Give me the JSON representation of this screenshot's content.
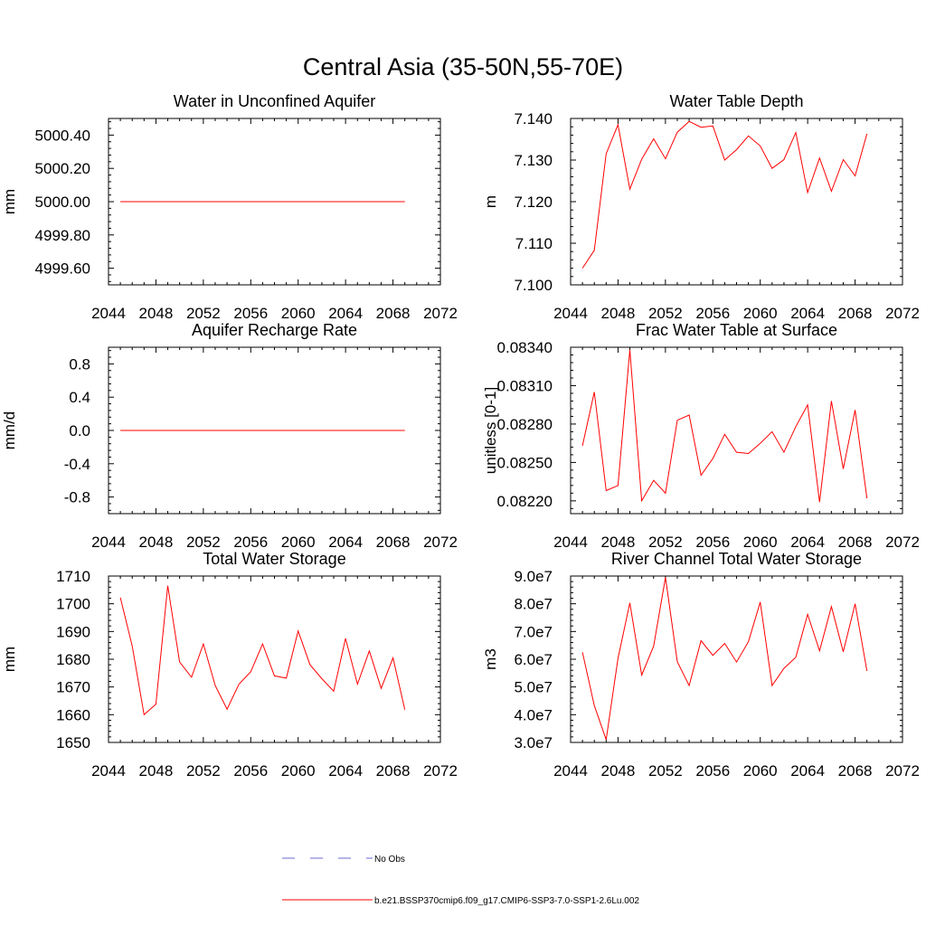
{
  "title": "Central Asia (35-50N,55-70E)",
  "colors": {
    "model": "#ff0000",
    "obs": "#6a6ad8",
    "axis": "#000000"
  },
  "legend": {
    "obs_label": "No Obs",
    "model_label": "b.e21.BSSP370cmip6.f09_g17.CMIP6-SSP3-7.0-SSP1-2.6Lu.002"
  },
  "chart_data": [
    {
      "type": "line",
      "title": "Water in Unconfined Aquifer",
      "ylabel": "mm",
      "xlim": [
        2044,
        2072
      ],
      "ylim": [
        4999.5,
        5000.5
      ],
      "xticks": [
        2044,
        2048,
        2052,
        2056,
        2060,
        2064,
        2068,
        2072
      ],
      "yticks": [
        4999.6,
        4999.8,
        5000.0,
        5000.2,
        5000.4
      ],
      "ytick_labels": [
        "4999.60",
        "4999.80",
        "5000.00",
        "5000.20",
        "5000.40"
      ],
      "x": [
        2045,
        2046,
        2047,
        2048,
        2049,
        2050,
        2051,
        2052,
        2053,
        2054,
        2055,
        2056,
        2057,
        2058,
        2059,
        2060,
        2061,
        2062,
        2063,
        2064,
        2065,
        2066,
        2067,
        2068,
        2069
      ],
      "values": [
        5000.0,
        5000.0,
        5000.0,
        5000.0,
        5000.0,
        5000.0,
        5000.0,
        5000.0,
        5000.0,
        5000.0,
        5000.0,
        5000.0,
        5000.0,
        5000.0,
        5000.0,
        5000.0,
        5000.0,
        5000.0,
        5000.0,
        5000.0,
        5000.0,
        5000.0,
        5000.0,
        5000.0,
        5000.0
      ]
    },
    {
      "type": "line",
      "title": "Water Table Depth",
      "ylabel": "m",
      "xlim": [
        2044,
        2072
      ],
      "ylim": [
        7.1,
        7.14
      ],
      "xticks": [
        2044,
        2048,
        2052,
        2056,
        2060,
        2064,
        2068,
        2072
      ],
      "yticks": [
        7.1,
        7.11,
        7.12,
        7.13,
        7.14
      ],
      "ytick_labels": [
        "7.100",
        "7.110",
        "7.120",
        "7.130",
        "7.140"
      ],
      "x": [
        2045,
        2046,
        2047,
        2048,
        2049,
        2050,
        2051,
        2052,
        2053,
        2054,
        2055,
        2056,
        2057,
        2058,
        2059,
        2060,
        2061,
        2062,
        2063,
        2064,
        2065,
        2066,
        2067,
        2068,
        2069
      ],
      "values": [
        7.104,
        7.1083,
        7.1315,
        7.1385,
        7.123,
        7.1302,
        7.1351,
        7.1303,
        7.1367,
        7.1393,
        7.1379,
        7.1382,
        7.13,
        7.1325,
        7.1358,
        7.1334,
        7.128,
        7.1301,
        7.1366,
        7.1222,
        7.1305,
        7.1225,
        7.1301,
        7.1262,
        7.1363
      ]
    },
    {
      "type": "line",
      "title": "Aquifer Recharge Rate",
      "ylabel": "mm/d",
      "xlim": [
        2044,
        2072
      ],
      "ylim": [
        -1.0,
        1.0
      ],
      "xticks": [
        2044,
        2048,
        2052,
        2056,
        2060,
        2064,
        2068,
        2072
      ],
      "yticks": [
        -0.8,
        -0.4,
        0.0,
        0.4,
        0.8
      ],
      "ytick_labels": [
        "-0.8",
        "-0.4",
        "0.0",
        "0.4",
        "0.8"
      ],
      "x": [
        2045,
        2046,
        2047,
        2048,
        2049,
        2050,
        2051,
        2052,
        2053,
        2054,
        2055,
        2056,
        2057,
        2058,
        2059,
        2060,
        2061,
        2062,
        2063,
        2064,
        2065,
        2066,
        2067,
        2068,
        2069
      ],
      "values": [
        0.0,
        0.0,
        0.0,
        0.0,
        0.0,
        0.0,
        0.0,
        0.0,
        0.0,
        0.0,
        0.0,
        0.0,
        0.0,
        0.0,
        0.0,
        0.0,
        0.0,
        0.0,
        0.0,
        0.0,
        0.0,
        0.0,
        0.0,
        0.0,
        0.0
      ]
    },
    {
      "type": "line",
      "title": "Frac Water Table at Surface",
      "ylabel": "unitless [0-1]",
      "xlim": [
        2044,
        2072
      ],
      "ylim": [
        0.0821,
        0.0834
      ],
      "xticks": [
        2044,
        2048,
        2052,
        2056,
        2060,
        2064,
        2068,
        2072
      ],
      "yticks": [
        0.0822,
        0.0825,
        0.0828,
        0.0831,
        0.0834
      ],
      "ytick_labels": [
        "0.08220",
        "0.08250",
        "0.08280",
        "0.08310",
        "0.08340"
      ],
      "x": [
        2045,
        2046,
        2047,
        2048,
        2049,
        2050,
        2051,
        2052,
        2053,
        2054,
        2055,
        2056,
        2057,
        2058,
        2059,
        2060,
        2061,
        2062,
        2063,
        2064,
        2065,
        2066,
        2067,
        2068,
        2069
      ],
      "values": [
        0.08263,
        0.08305,
        0.08228,
        0.08232,
        0.08338,
        0.0822,
        0.08236,
        0.08226,
        0.08283,
        0.08287,
        0.0824,
        0.08253,
        0.08272,
        0.08258,
        0.08257,
        0.08265,
        0.08274,
        0.08258,
        0.08278,
        0.08295,
        0.08219,
        0.08298,
        0.08245,
        0.08291,
        0.08222
      ]
    },
    {
      "type": "line",
      "title": "Total Water Storage",
      "ylabel": "mm",
      "xlim": [
        2044,
        2072
      ],
      "ylim": [
        1650,
        1710
      ],
      "xticks": [
        2044,
        2048,
        2052,
        2056,
        2060,
        2064,
        2068,
        2072
      ],
      "yticks": [
        1650,
        1660,
        1670,
        1680,
        1690,
        1700,
        1710
      ],
      "ytick_labels": [
        "1650",
        "1660",
        "1670",
        "1680",
        "1690",
        "1700",
        "1710"
      ],
      "x": [
        2045,
        2046,
        2047,
        2048,
        2049,
        2050,
        2051,
        2052,
        2053,
        2054,
        2055,
        2056,
        2057,
        2058,
        2059,
        2060,
        2061,
        2062,
        2063,
        2064,
        2065,
        2066,
        2067,
        2068,
        2069
      ],
      "values": [
        1702.2,
        1684.8,
        1660.0,
        1663.8,
        1706.5,
        1679.0,
        1673.5,
        1685.5,
        1670.5,
        1662.0,
        1671.0,
        1675.5,
        1685.5,
        1674.0,
        1673.2,
        1690.2,
        1678.0,
        1673.0,
        1668.5,
        1687.5,
        1671.0,
        1683.0,
        1669.5,
        1680.5,
        1661.8
      ]
    },
    {
      "type": "line",
      "title": "River Channel Total Water Storage",
      "ylabel": "m3",
      "xlim": [
        2044,
        2072
      ],
      "ylim": [
        30000000,
        90000000
      ],
      "xticks": [
        2044,
        2048,
        2052,
        2056,
        2060,
        2064,
        2068,
        2072
      ],
      "yticks": [
        30000000,
        40000000,
        50000000,
        60000000,
        70000000,
        80000000,
        90000000
      ],
      "ytick_labels": [
        "3.0e7",
        "4.0e7",
        "5.0e7",
        "6.0e7",
        "7.0e7",
        "8.0e7",
        "9.0e7"
      ],
      "x": [
        2045,
        2046,
        2047,
        2048,
        2049,
        2050,
        2051,
        2052,
        2053,
        2054,
        2055,
        2056,
        2057,
        2058,
        2059,
        2060,
        2061,
        2062,
        2063,
        2064,
        2065,
        2066,
        2067,
        2068,
        2069
      ],
      "values": [
        62500000,
        43300000,
        31000000,
        60300000,
        80300000,
        54300000,
        64700000,
        89500000,
        59100000,
        50500000,
        66700000,
        61400000,
        65700000,
        59000000,
        66300000,
        80600000,
        50500000,
        56700000,
        60700000,
        76200000,
        63000000,
        79000000,
        62700000,
        80000000,
        55800000
      ]
    }
  ]
}
